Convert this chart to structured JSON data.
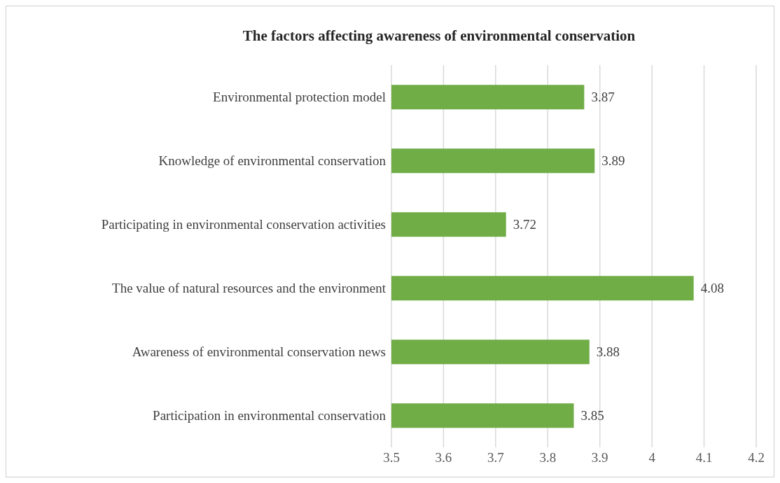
{
  "chart_data": {
    "type": "bar",
    "orientation": "horizontal",
    "title": "The factors affecting awareness of environmental conservation",
    "categories": [
      "Environmental protection model",
      "Knowledge of environmental conservation",
      "Participating in environmental conservation activities",
      "The value of natural resources and the environment",
      "Awareness of environmental conservation news",
      "Participation in environmental conservation"
    ],
    "values": [
      3.87,
      3.89,
      3.72,
      4.08,
      3.88,
      3.85
    ],
    "color": "#70ad47",
    "xlim": [
      3.5,
      4.2
    ],
    "xticks": [
      3.5,
      3.6,
      3.7,
      3.8,
      3.9,
      4,
      4.1,
      4.2
    ],
    "grid": "x",
    "data_labels": true
  }
}
